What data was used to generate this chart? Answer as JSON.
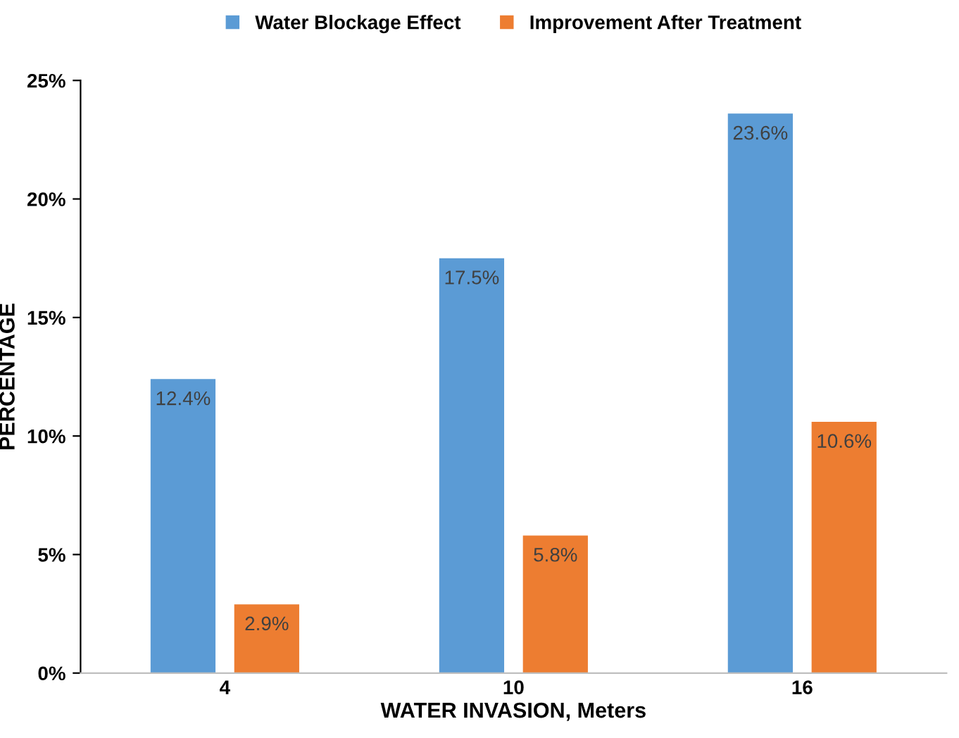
{
  "chart_data": {
    "type": "bar",
    "xlabel": "WATER INVASION, Meters",
    "ylabel": "PERCENTAGE",
    "categories": [
      "4",
      "10",
      "16"
    ],
    "series": [
      {
        "name": "Water Blockage Effect",
        "color": "#5b9bd5",
        "values": [
          12.4,
          17.5,
          23.6
        ],
        "value_labels": [
          "12.4%",
          "17.5%",
          "23.6%"
        ]
      },
      {
        "name": "Improvement After Treatment",
        "color": "#ed7d31",
        "values": [
          2.9,
          5.8,
          10.6
        ],
        "value_labels": [
          "2.9%",
          "5.8%",
          "10.6%"
        ]
      }
    ],
    "ylim": [
      0,
      25
    ],
    "yticks": [
      {
        "value": 0,
        "label": "0%"
      },
      {
        "value": 5,
        "label": "5%"
      },
      {
        "value": 10,
        "label": "10%"
      },
      {
        "value": 15,
        "label": "15%"
      },
      {
        "value": 20,
        "label": "20%"
      },
      {
        "value": 25,
        "label": "25%"
      }
    ],
    "grid": false,
    "legend": "top"
  }
}
